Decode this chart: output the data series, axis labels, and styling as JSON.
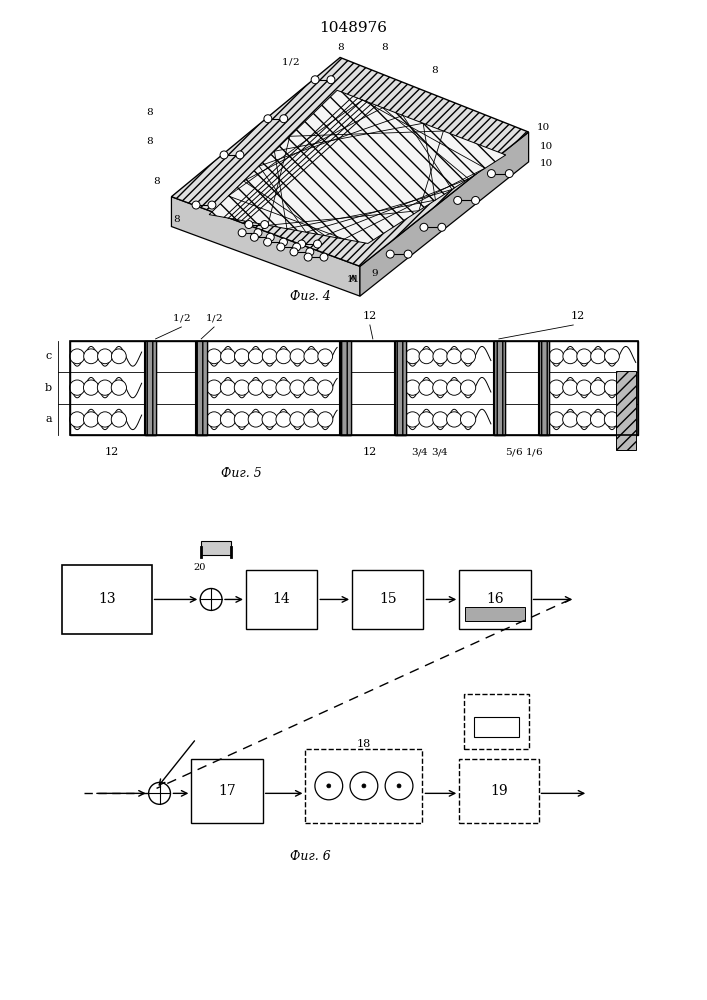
{
  "title": "1048976",
  "bg_color": "#ffffff",
  "fig4_label": "Фиг. 4",
  "fig5_label": "Фиг. 5",
  "fig6_label": "Фиг. 6"
}
